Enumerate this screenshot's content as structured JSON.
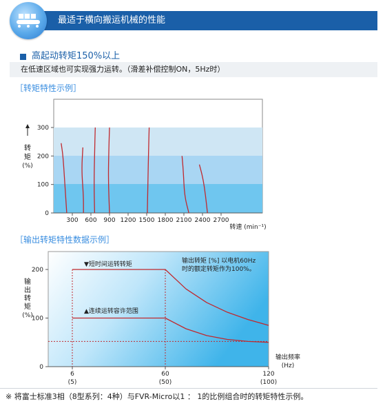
{
  "header": {
    "title": "最适于横向搬运机械的性能"
  },
  "feature": {
    "title": "高起动转矩150%以上",
    "description": "在低速区域也可实现强力运转。（滑差补偿控制ON，5Hz时）"
  },
  "colors": {
    "header": "#1a5fa8",
    "section_title": "#3a8ee0",
    "curve": "#c0282d"
  },
  "chart_data": [
    {
      "type": "line",
      "section_title": "［转矩特性示例］",
      "ylabel": "转矩 (%)",
      "xlabel": "转速 (min⁻¹)",
      "ylim": [
        0,
        330
      ],
      "xlim": [
        0,
        3000
      ],
      "xticks": [
        300,
        600,
        900,
        1200,
        1500,
        1800,
        2100,
        2400,
        2700
      ],
      "yticks": [
        0,
        100,
        200,
        300
      ],
      "series": [
        {
          "points": [
            [
              120,
              245
            ],
            [
              150,
              200
            ],
            [
              180,
              100
            ],
            [
              210,
              0
            ]
          ]
        },
        {
          "points": [
            [
              470,
              230
            ],
            [
              450,
              150
            ],
            [
              480,
              60
            ],
            [
              480,
              0
            ]
          ]
        },
        {
          "points": [
            [
              670,
              300
            ],
            [
              660,
              220
            ],
            [
              650,
              100
            ],
            [
              660,
              0
            ]
          ]
        },
        {
          "points": [
            [
              900,
              300
            ],
            [
              890,
              230
            ],
            [
              880,
              120
            ],
            [
              900,
              0
            ]
          ]
        },
        {
          "points": [
            [
              1540,
              300
            ],
            [
              1530,
              220
            ],
            [
              1520,
              110
            ],
            [
              1510,
              0
            ]
          ]
        },
        {
          "points": [
            [
              2070,
              200
            ],
            [
              2090,
              150
            ],
            [
              2110,
              60
            ],
            [
              2180,
              0
            ]
          ]
        },
        {
          "points": [
            [
              2350,
              170
            ],
            [
              2410,
              120
            ],
            [
              2450,
              60
            ],
            [
              2480,
              0
            ]
          ]
        }
      ]
    },
    {
      "type": "area",
      "section_title": "［输出转矩特性数据示例］",
      "ylabel": "输出转矩 (%)",
      "xlabel": "输出频率 (Hz)",
      "ylim": [
        0,
        235
      ],
      "x_tick_labels": [
        {
          "value": 6,
          "label": "6",
          "sublabel": "(5)"
        },
        {
          "value": 60,
          "label": "60",
          "sublabel": "(50)"
        },
        {
          "value": 120,
          "label": "120",
          "sublabel": "(100)"
        }
      ],
      "yticks": [
        0,
        100,
        200
      ],
      "series": [
        {
          "name": "▼短时间运转转矩",
          "points": [
            [
              6,
              200
            ],
            [
              60,
              200
            ],
            [
              72,
              160
            ],
            [
              84,
              132
            ],
            [
              96,
              112
            ],
            [
              108,
              97
            ],
            [
              120,
              85
            ]
          ]
        },
        {
          "name": "▲连续运转容许范围",
          "points": [
            [
              6,
              100
            ],
            [
              60,
              100
            ],
            [
              72,
              78
            ],
            [
              84,
              64
            ],
            [
              96,
              56
            ],
            [
              108,
              52
            ],
            [
              120,
              50
            ]
          ]
        }
      ],
      "reference_line_y": 52,
      "annotation": "输出转矩 [%] 以电机60Hz时的额定转矩作为100%。"
    }
  ],
  "footer": {
    "note": "※ 将富士标准3相（8型系列：4种）与FVR-Micro以1 ： 1的比例组合时的转矩特性示例。"
  }
}
